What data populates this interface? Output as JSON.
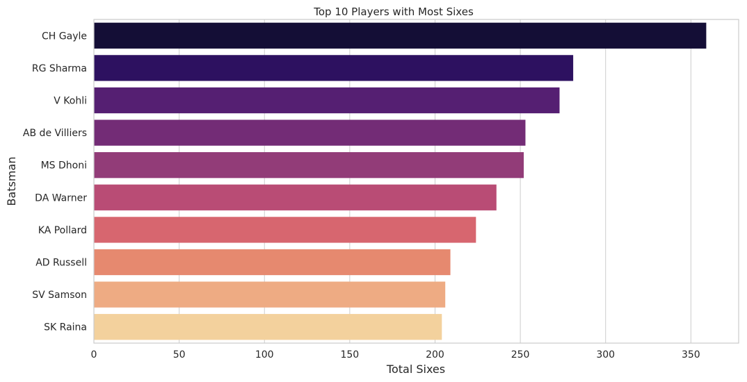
{
  "chart_data": {
    "type": "bar",
    "orientation": "horizontal",
    "title": "Top 10 Players with Most Sixes",
    "xlabel": "Total Sixes",
    "ylabel": "Batsman",
    "categories": [
      "CH Gayle",
      "RG Sharma",
      "V Kohli",
      "AB de Villiers",
      "MS Dhoni",
      "DA Warner",
      "KA Pollard",
      "AD Russell",
      "SV Samson",
      "SK Raina"
    ],
    "values": [
      359,
      281,
      273,
      253,
      252,
      236,
      224,
      209,
      206,
      204
    ],
    "xlim": [
      0,
      378
    ],
    "xticks": [
      0,
      50,
      100,
      150,
      200,
      250,
      300,
      350
    ],
    "grid": "x-axis vertical lines",
    "palette": "magma",
    "colors": [
      "#140e36",
      "#2d1160",
      "#551f72",
      "#732c76",
      "#923c78",
      "#b94c75",
      "#d7666f",
      "#e6896f",
      "#eeab83",
      "#f3d19d"
    ]
  }
}
